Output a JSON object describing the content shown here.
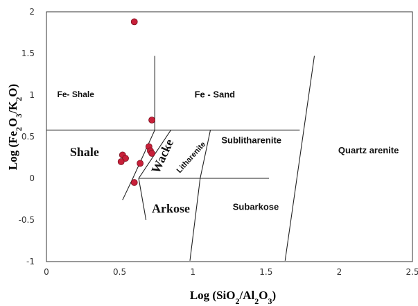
{
  "chart_data": {
    "type": "scatter",
    "title": "",
    "xlabel_parts": [
      "Log (SiO",
      "2",
      "/Al",
      "2",
      "O",
      "3",
      ")"
    ],
    "ylabel_parts": [
      "Log (Fe",
      "2",
      "O",
      "3",
      "/K",
      "2",
      "O)"
    ],
    "xlim": [
      0,
      2.5
    ],
    "ylim": [
      -1,
      2
    ],
    "x_ticks": [
      "0",
      "0.5",
      "1",
      "1.5",
      "2",
      "2.5"
    ],
    "y_ticks": [
      "-1",
      "-0.5",
      "0",
      "0.5",
      "1",
      "1.5",
      "2"
    ],
    "grid": false,
    "point_color": "#c8203a",
    "series": [
      {
        "x": [
          0.6,
          0.72,
          0.52,
          0.54,
          0.51,
          0.7,
          0.71,
          0.72,
          0.64,
          0.6
        ],
        "y": [
          1.88,
          0.7,
          0.28,
          0.24,
          0.2,
          0.38,
          0.33,
          0.3,
          0.18,
          -0.05
        ]
      }
    ],
    "regions": [
      {
        "label": "Fe- Shale",
        "x": 0.2,
        "y": 1.0,
        "style": "sans",
        "size": 12
      },
      {
        "label": "Fe - Sand",
        "x": 1.15,
        "y": 1.0,
        "style": "sans",
        "size": 13
      },
      {
        "label": "Shale",
        "x": 0.26,
        "y": 0.3,
        "style": "serif",
        "size": 18
      },
      {
        "label": "Wacke",
        "x": 0.8,
        "y": 0.26,
        "style": "serif",
        "size": 18,
        "rotate": -65
      },
      {
        "label": "Litharenite",
        "x": 0.99,
        "y": 0.25,
        "style": "sans",
        "size": 11,
        "rotate": -48
      },
      {
        "label": "Sublitharenite",
        "x": 1.4,
        "y": 0.45,
        "style": "sans",
        "size": 13
      },
      {
        "label": "Quartz arenite",
        "x": 2.2,
        "y": 0.33,
        "style": "sans",
        "size": 13
      },
      {
        "label": "Arkose",
        "x": 0.85,
        "y": -0.38,
        "style": "serif",
        "size": 18
      },
      {
        "label": "Subarkose",
        "x": 1.43,
        "y": -0.35,
        "style": "sans",
        "size": 13
      }
    ],
    "boundaries": [
      {
        "from": [
          0,
          0.58
        ],
        "to": [
          1.73,
          0.58
        ]
      },
      {
        "from": [
          0.74,
          1.47
        ],
        "to": [
          0.74,
          0.58
        ]
      },
      {
        "from": [
          0.74,
          0.58
        ],
        "to": [
          0.59,
          0.0
        ]
      },
      {
        "from": [
          0.59,
          0.0
        ],
        "to": [
          0.52,
          -0.26
        ]
      },
      {
        "from": [
          1.12,
          0.58
        ],
        "to": [
          1.05,
          0.0
        ]
      },
      {
        "from": [
          0.85,
          0.58
        ],
        "to": [
          0.63,
          0.0
        ]
      },
      {
        "from": [
          0.63,
          0.0
        ],
        "to": [
          1.52,
          0.0
        ]
      },
      {
        "from": [
          0.63,
          0.0
        ],
        "to": [
          0.68,
          -0.5
        ]
      },
      {
        "from": [
          1.05,
          0.0
        ],
        "to": [
          0.98,
          -0.99
        ]
      },
      {
        "from": [
          1.83,
          1.47
        ],
        "to": [
          1.63,
          -0.99
        ]
      }
    ]
  }
}
